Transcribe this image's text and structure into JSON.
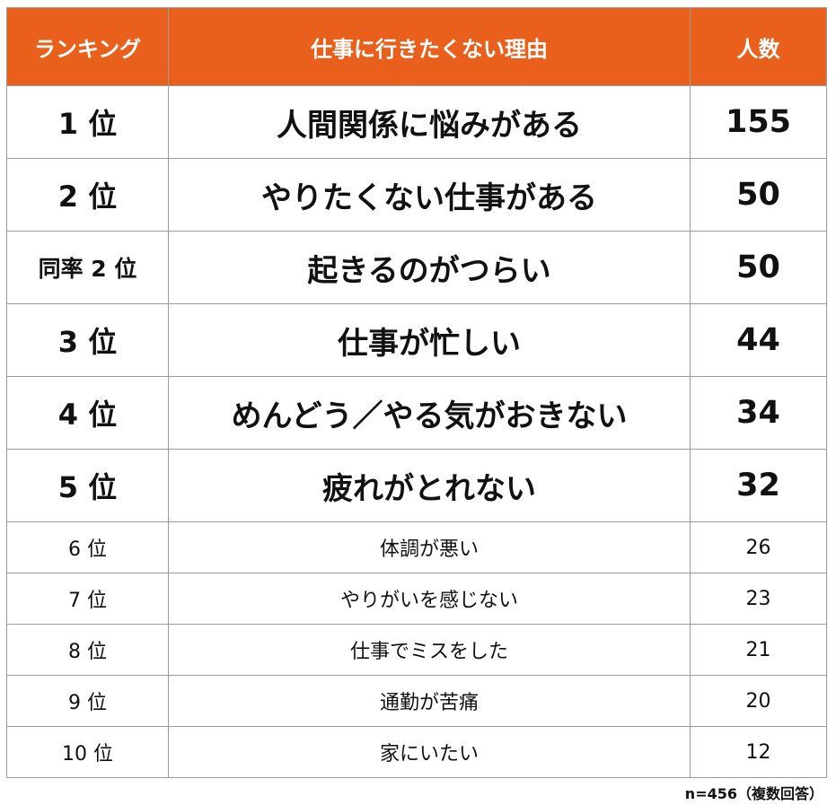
{
  "chart_data": {
    "type": "table",
    "columns": [
      "ランキング",
      "仕事に行きたくない理由",
      "人数"
    ],
    "rows": [
      {
        "rank": "1 位",
        "reason": "人間関係に悩みがある",
        "count": 155
      },
      {
        "rank": "2 位",
        "reason": "やりたくない仕事がある",
        "count": 50
      },
      {
        "rank": "同率 2 位",
        "reason": "起きるのがつらい",
        "count": 50
      },
      {
        "rank": "3 位",
        "reason": "仕事が忙しい",
        "count": 44
      },
      {
        "rank": "4 位",
        "reason": "めんどう／やる気がおきない",
        "count": 34
      },
      {
        "rank": "5 位",
        "reason": "疲れがとれない",
        "count": 32
      },
      {
        "rank": "6 位",
        "reason": "体調が悪い",
        "count": 26
      },
      {
        "rank": "7 位",
        "reason": "やりがいを感じない",
        "count": 23
      },
      {
        "rank": "8 位",
        "reason": "仕事でミスをした",
        "count": 21
      },
      {
        "rank": "9 位",
        "reason": "通勤が苦痛",
        "count": 20
      },
      {
        "rank": "10 位",
        "reason": "家にいたい",
        "count": 12
      }
    ],
    "note": "n=456（複数回答）",
    "header_color": "#e8601c"
  }
}
